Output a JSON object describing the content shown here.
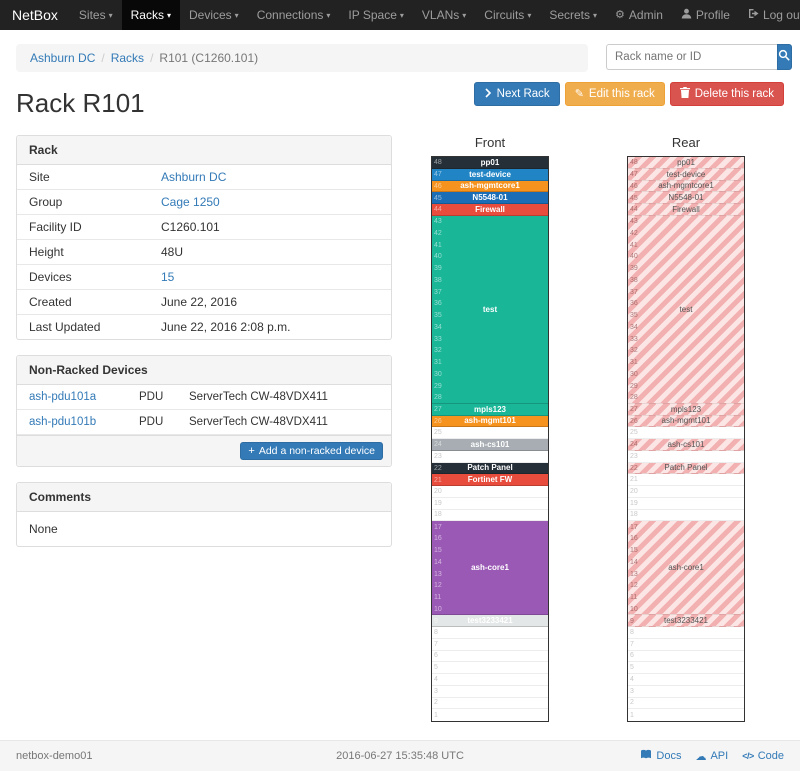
{
  "navbar": {
    "brand": "NetBox",
    "items": [
      {
        "label": "Sites"
      },
      {
        "label": "Racks"
      },
      {
        "label": "Devices"
      },
      {
        "label": "Connections"
      },
      {
        "label": "IP Space"
      },
      {
        "label": "VLANs"
      },
      {
        "label": "Circuits"
      },
      {
        "label": "Secrets"
      }
    ],
    "active_item": "Racks",
    "admin": "Admin",
    "profile": "Profile",
    "logout": "Log out"
  },
  "breadcrumb": {
    "items": [
      "Ashburn DC",
      "Racks",
      "R101 (C1260.101)"
    ]
  },
  "search": {
    "placeholder": "Rack name or ID"
  },
  "actions": {
    "next": "Next Rack",
    "edit": "Edit this rack",
    "delete": "Delete this rack"
  },
  "page_title": "Rack R101",
  "rack_info": {
    "title": "Rack",
    "rows": [
      {
        "label": "Site",
        "value": "Ashburn DC",
        "link": true
      },
      {
        "label": "Group",
        "value": "Cage 1250",
        "link": true
      },
      {
        "label": "Facility ID",
        "value": "C1260.101",
        "link": false
      },
      {
        "label": "Height",
        "value": "48U",
        "link": false
      },
      {
        "label": "Devices",
        "value": "15",
        "link": true
      },
      {
        "label": "Created",
        "value": "June 22, 2016",
        "link": false
      },
      {
        "label": "Last Updated",
        "value": "June 22, 2016 2:08 p.m.",
        "link": false
      }
    ]
  },
  "non_racked": {
    "title": "Non-Racked Devices",
    "devices": [
      {
        "name": "ash-pdu101a",
        "role": "PDU",
        "type": "ServerTech CW-48VDX411"
      },
      {
        "name": "ash-pdu101b",
        "role": "PDU",
        "type": "ServerTech CW-48VDX411"
      }
    ],
    "add_label": "Add a non-racked device"
  },
  "comments": {
    "title": "Comments",
    "body": "None"
  },
  "elevation": {
    "front_label": "Front",
    "rear_label": "Rear",
    "units": 48,
    "devices": [
      {
        "name": "pp01",
        "unit": 48,
        "u_height": 1,
        "color": "#252f38",
        "rear_visible": true
      },
      {
        "name": "test-device",
        "unit": 47,
        "u_height": 1,
        "color": "#2185c5",
        "rear_visible": true
      },
      {
        "name": "ash-mgmtcore1",
        "unit": 46,
        "u_height": 1,
        "color": "#f6921e",
        "rear_visible": true
      },
      {
        "name": "N5548-01",
        "unit": 45,
        "u_height": 1,
        "color": "#1b6eb5",
        "rear_visible": true
      },
      {
        "name": "Firewall",
        "unit": 44,
        "u_height": 1,
        "color": "#e74c3c",
        "rear_visible": true
      },
      {
        "name": "test",
        "unit": 43,
        "u_height": 16,
        "color": "#19b698",
        "rear_visible": true
      },
      {
        "name": "mpls123",
        "unit": 27,
        "u_height": 1,
        "color": "#19b698",
        "rear_visible": true
      },
      {
        "name": "ash-mgmt101",
        "unit": 26,
        "u_height": 1,
        "color": "#f6921e",
        "rear_visible": true
      },
      {
        "name": "ash-cs101",
        "unit": 24,
        "u_height": 1,
        "color": "#a7adb2",
        "rear_visible": true
      },
      {
        "name": "Patch Panel",
        "unit": 22,
        "u_height": 1,
        "color": "#252f38",
        "rear_visible": true
      },
      {
        "name": "Fortinet FW",
        "unit": 21,
        "u_height": 1,
        "color": "#e74c3c",
        "rear_visible": false
      },
      {
        "name": "ash-core1",
        "unit": 17,
        "u_height": 8,
        "color": "#9b59b6",
        "rear_visible": true
      },
      {
        "name": "test3233421",
        "unit": 9,
        "u_height": 1,
        "color": "#e4e7e7",
        "rear_visible": true
      }
    ]
  },
  "footer": {
    "hostname": "netbox-demo01",
    "timestamp": "2016-06-27 15:35:48 UTC",
    "docs": "Docs",
    "api": "API",
    "code": "Code"
  },
  "icons": {
    "gear": "⚙",
    "caret": "▾",
    "cloud": "☁",
    "plus": "+",
    "pencil": "✎",
    "code_glyph": "</>"
  },
  "colors": {
    "accent": "#337ab7",
    "warning": "#f0ad4e",
    "danger": "#d9534f",
    "navbar_bg": "#222222",
    "rear_stripe_light": "#fbe5e5",
    "rear_stripe_dark": "#f2b0b0"
  }
}
